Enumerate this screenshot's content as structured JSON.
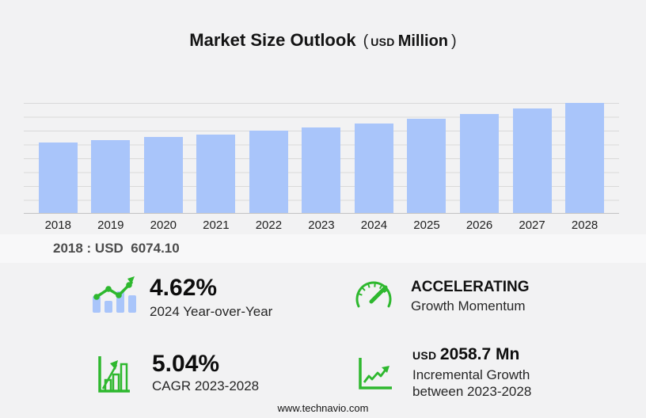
{
  "title": {
    "main": "Market Size Outlook",
    "paren_open": "(",
    "currency": "USD",
    "unit": "Million",
    "paren_close": ")"
  },
  "chart_data": {
    "type": "bar",
    "title": "Market Size Outlook (USD Million)",
    "categories": [
      "2018",
      "2019",
      "2020",
      "2021",
      "2022",
      "2023",
      "2024",
      "2025",
      "2026",
      "2027",
      "2028"
    ],
    "values": [
      6074.1,
      6295,
      6520,
      6750,
      7080,
      7386.2,
      7727.4,
      8100,
      8520,
      8950,
      9444.9
    ],
    "xlabel": "",
    "ylabel": "",
    "ylim": [
      0,
      9449
    ],
    "grid": true,
    "legend": "none",
    "unit": "USD Million",
    "annotated_value": {
      "year": "2018",
      "value": 6074.1
    }
  },
  "annotation": {
    "text": "2018 : USD  6074.10"
  },
  "stats": [
    {
      "icon": "bar-trend-icon",
      "value": "4.62%",
      "label": "2024 Year-over-Year"
    },
    {
      "icon": "speedometer-icon",
      "title": "ACCELERATING",
      "label": "Growth Momentum"
    },
    {
      "icon": "outlined-bars-arrow-icon",
      "value": "5.04%",
      "label": "CAGR 2023-2028"
    },
    {
      "icon": "line-growth-icon",
      "currency": "USD",
      "value": "2058.7 Mn",
      "label_line1": "Incremental Growth",
      "label_line2": "between 2023-2028"
    }
  ],
  "footer": {
    "url": "www.technavio.com"
  },
  "colors": {
    "background": "#f2f2f3",
    "bar": "#a9c5fa",
    "grid": "#d9d9d9",
    "baseline": "#c3c3c3",
    "green": "#2eb82e"
  }
}
